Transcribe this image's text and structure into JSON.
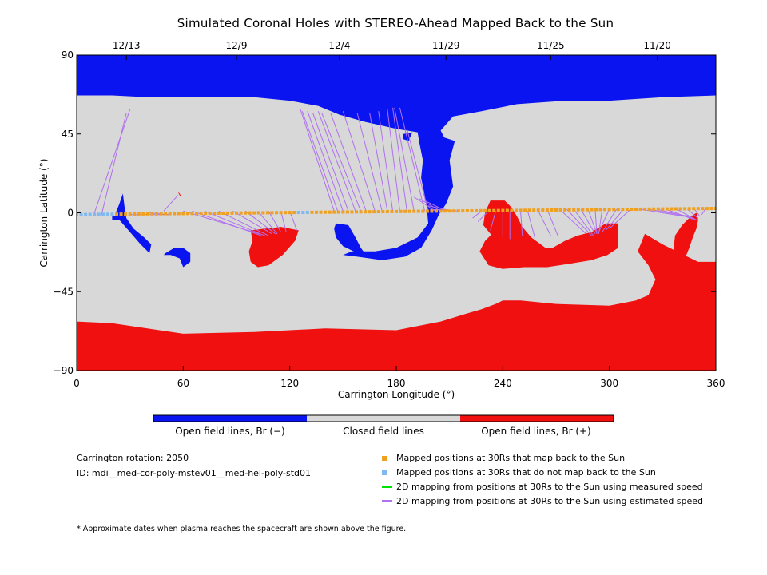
{
  "title": "Simulated Coronal Holes with STEREO-Ahead Mapped Back to the Sun",
  "chart_data": {
    "type": "heatmap",
    "title": "Simulated Coronal Holes with STEREO-Ahead Mapped Back to the Sun",
    "xlabel": "Carrington Longitude (°)",
    "ylabel": "Carrington Latitude (°)",
    "xlim": [
      0,
      360
    ],
    "ylim": [
      -90,
      90
    ],
    "x_ticks": [
      0,
      60,
      120,
      180,
      240,
      300,
      360
    ],
    "y_ticks": [
      -90,
      -45,
      0,
      45,
      90
    ],
    "top_axis_dates": [
      {
        "label": "12/13",
        "lon": 28
      },
      {
        "label": "12/9",
        "lon": 90
      },
      {
        "label": "12/4",
        "lon": 148
      },
      {
        "label": "11/29",
        "lon": 208
      },
      {
        "label": "11/25",
        "lon": 267
      },
      {
        "label": "11/20",
        "lon": 327
      }
    ],
    "categories": [
      "Open field lines, Br (−)",
      "Closed field lines",
      "Open field lines, Br (+)"
    ],
    "colors": {
      "neg": "#0a14f0",
      "closed": "#d8d8d8",
      "pos": "#f01010",
      "mapped": "#f0a020",
      "unmapped": "#80b8f0",
      "measured": "#00e000",
      "estimated": "#b070f0"
    },
    "regions": [
      {
        "polarity": "neg",
        "poly": [
          [
            0,
            90
          ],
          [
            360,
            90
          ],
          [
            360,
            67
          ],
          [
            330,
            66
          ],
          [
            300,
            64
          ],
          [
            275,
            64
          ],
          [
            248,
            62
          ],
          [
            228,
            58
          ],
          [
            212,
            55
          ],
          [
            205,
            47
          ],
          [
            207,
            43
          ],
          [
            213,
            41
          ],
          [
            210,
            30
          ],
          [
            212,
            15
          ],
          [
            208,
            5
          ],
          [
            204,
            -1
          ],
          [
            200,
            -10
          ],
          [
            194,
            -20
          ],
          [
            185,
            -25
          ],
          [
            172,
            -27
          ],
          [
            158,
            -25
          ],
          [
            150,
            -24
          ],
          [
            155,
            -22
          ],
          [
            168,
            -22
          ],
          [
            180,
            -20
          ],
          [
            192,
            -14
          ],
          [
            198,
            -6
          ],
          [
            197,
            5
          ],
          [
            194,
            20
          ],
          [
            195,
            30
          ],
          [
            193,
            40
          ],
          [
            192,
            46
          ],
          [
            180,
            48
          ],
          [
            162,
            52
          ],
          [
            148,
            56
          ],
          [
            136,
            61
          ],
          [
            120,
            64
          ],
          [
            100,
            66
          ],
          [
            80,
            66
          ],
          [
            60,
            66
          ],
          [
            40,
            66
          ],
          [
            20,
            67
          ],
          [
            0,
            67
          ]
        ]
      },
      {
        "polarity": "neg",
        "poly": [
          [
            146,
            -6
          ],
          [
            153,
            -7
          ],
          [
            157,
            -14
          ],
          [
            160,
            -20
          ],
          [
            163,
            -24
          ],
          [
            156,
            -22
          ],
          [
            150,
            -19
          ],
          [
            146,
            -14
          ],
          [
            145,
            -9
          ]
        ]
      },
      {
        "polarity": "neg",
        "poly": [
          [
            184,
            45
          ],
          [
            189,
            46
          ],
          [
            187,
            41
          ],
          [
            184,
            42
          ]
        ]
      },
      {
        "polarity": "neg",
        "poly": [
          [
            24,
            5
          ],
          [
            26,
            11
          ],
          [
            27,
            3
          ],
          [
            28,
            -3
          ],
          [
            32,
            -9
          ],
          [
            38,
            -14
          ],
          [
            42,
            -18
          ],
          [
            41,
            -23
          ],
          [
            36,
            -18
          ],
          [
            30,
            -11
          ],
          [
            24,
            -4
          ],
          [
            22,
            0
          ]
        ]
      },
      {
        "polarity": "neg",
        "poly": [
          [
            50,
            -23
          ],
          [
            55,
            -20
          ],
          [
            60,
            -20
          ],
          [
            64,
            -23
          ],
          [
            64,
            -28
          ],
          [
            60,
            -31
          ],
          [
            58,
            -26
          ],
          [
            53,
            -24
          ],
          [
            49,
            -24
          ]
        ]
      },
      {
        "polarity": "neg",
        "poly": [
          [
            20,
            -2
          ],
          [
            26,
            -2
          ],
          [
            26,
            -4
          ],
          [
            20,
            -4
          ]
        ]
      },
      {
        "polarity": "pos",
        "poly": [
          [
            0,
            -62
          ],
          [
            20,
            -63
          ],
          [
            60,
            -69
          ],
          [
            100,
            -68
          ],
          [
            140,
            -66
          ],
          [
            180,
            -67
          ],
          [
            205,
            -62
          ],
          [
            218,
            -58
          ],
          [
            228,
            -55
          ],
          [
            236,
            -52
          ],
          [
            240,
            -50
          ],
          [
            250,
            -50
          ],
          [
            270,
            -52
          ],
          [
            300,
            -53
          ],
          [
            315,
            -50
          ],
          [
            322,
            -47
          ],
          [
            326,
            -38
          ],
          [
            322,
            -30
          ],
          [
            316,
            -22
          ],
          [
            320,
            -12
          ],
          [
            330,
            -18
          ],
          [
            342,
            -24
          ],
          [
            350,
            -28
          ],
          [
            360,
            -28
          ],
          [
            360,
            -90
          ],
          [
            0,
            -90
          ]
        ]
      },
      {
        "polarity": "pos",
        "poly": [
          [
            233,
            7
          ],
          [
            241,
            7
          ],
          [
            245,
            3
          ],
          [
            248,
            -2
          ],
          [
            251,
            -8
          ],
          [
            256,
            -14
          ],
          [
            260,
            -17
          ],
          [
            264,
            -20
          ],
          [
            268,
            -20
          ],
          [
            275,
            -16
          ],
          [
            282,
            -13
          ],
          [
            290,
            -11
          ],
          [
            298,
            -6
          ],
          [
            305,
            -6
          ],
          [
            305,
            -20
          ],
          [
            299,
            -24
          ],
          [
            290,
            -27
          ],
          [
            278,
            -29
          ],
          [
            265,
            -31
          ],
          [
            252,
            -31
          ],
          [
            240,
            -32
          ],
          [
            232,
            -30
          ],
          [
            227,
            -22
          ],
          [
            230,
            -16
          ],
          [
            234,
            -12
          ],
          [
            244,
            -12
          ],
          [
            251,
            -8
          ],
          [
            245,
            -14
          ],
          [
            238,
            -15
          ],
          [
            233,
            -12
          ],
          [
            229,
            -7
          ],
          [
            230,
            0
          ]
        ]
      },
      {
        "polarity": "pos",
        "poly": [
          [
            346,
            -2
          ],
          [
            349,
            0
          ],
          [
            350,
            -4
          ],
          [
            349,
            -9
          ],
          [
            347,
            -14
          ],
          [
            345,
            -20
          ],
          [
            343,
            -25
          ],
          [
            342,
            -29
          ],
          [
            340,
            -31
          ],
          [
            337,
            -30
          ],
          [
            336,
            -22
          ],
          [
            337,
            -13
          ],
          [
            341,
            -7
          ],
          [
            344,
            -4
          ]
        ]
      },
      {
        "polarity": "pos",
        "poly": [
          [
            98,
            -10
          ],
          [
            115,
            -8
          ],
          [
            125,
            -10
          ],
          [
            123,
            -16
          ],
          [
            116,
            -24
          ],
          [
            108,
            -30
          ],
          [
            102,
            -31
          ],
          [
            98,
            -28
          ],
          [
            97,
            -22
          ],
          [
            99,
            -16
          ]
        ]
      },
      {
        "polarity": "pos",
        "poly": [
          [
            57,
            12
          ],
          [
            58,
            10
          ],
          [
            59,
            9
          ],
          [
            58,
            11
          ]
        ]
      }
    ],
    "mapped_at_30Rs": {
      "lon_start": 0,
      "lon_end": 360,
      "step": 2.5,
      "lat_start": -1,
      "lat_end": 2.5,
      "unmapped_lon_ranges": [
        [
          0,
          20
        ],
        [
          124,
          131
        ]
      ]
    },
    "estimated_speed_mappings": [
      [
        10,
        0,
        30,
        59
      ],
      [
        14,
        -1,
        28,
        57
      ],
      [
        30,
        -1,
        52,
        -1
      ],
      [
        40,
        0,
        52,
        -1
      ],
      [
        49,
        1,
        57,
        10
      ],
      [
        60,
        1,
        103,
        -12
      ],
      [
        65,
        1,
        104,
        -13
      ],
      [
        72,
        1,
        106,
        -13
      ],
      [
        80,
        1,
        108,
        -13
      ],
      [
        88,
        1,
        110,
        -12
      ],
      [
        95,
        1,
        112,
        -12
      ],
      [
        102,
        1,
        113,
        -12
      ],
      [
        108,
        1,
        115,
        -11
      ],
      [
        115,
        1,
        118,
        -11
      ],
      [
        120,
        1,
        124,
        -10
      ],
      [
        145,
        1,
        126,
        59
      ],
      [
        147,
        1,
        127,
        58
      ],
      [
        150,
        1,
        130,
        58
      ],
      [
        153,
        1,
        133,
        57
      ],
      [
        157,
        1,
        136,
        58
      ],
      [
        160,
        1,
        138,
        57
      ],
      [
        163,
        1,
        143,
        57
      ],
      [
        168,
        1,
        150,
        58
      ],
      [
        172,
        1,
        158,
        57
      ],
      [
        175,
        1,
        165,
        57
      ],
      [
        178,
        1,
        170,
        58
      ],
      [
        182,
        1,
        175,
        59
      ],
      [
        186,
        1,
        178,
        60
      ],
      [
        190,
        1,
        179,
        60
      ],
      [
        196,
        1,
        182,
        60
      ],
      [
        198,
        1,
        186,
        48
      ],
      [
        202,
        1,
        190,
        9
      ],
      [
        205,
        1,
        193,
        8
      ],
      [
        208,
        1,
        196,
        7
      ],
      [
        212,
        1,
        198,
        4
      ],
      [
        215,
        1,
        199,
        2
      ],
      [
        228,
        1,
        223,
        -3
      ],
      [
        232,
        1,
        226,
        -5
      ],
      [
        236,
        1,
        233,
        -10
      ],
      [
        240,
        1,
        240,
        -13
      ],
      [
        244,
        1,
        244,
        -15
      ],
      [
        250,
        1,
        251,
        -13
      ],
      [
        254,
        1,
        258,
        -14
      ],
      [
        260,
        1,
        267,
        -13
      ],
      [
        265,
        2,
        271,
        -13
      ],
      [
        272,
        2,
        287,
        -12
      ],
      [
        276,
        2,
        290,
        -13
      ],
      [
        280,
        2,
        291,
        -13
      ],
      [
        284,
        2,
        292,
        -12
      ],
      [
        288,
        2,
        293,
        -12
      ],
      [
        292,
        2,
        293,
        -12
      ],
      [
        296,
        2,
        294,
        -12
      ],
      [
        300,
        2,
        294,
        -11
      ],
      [
        304,
        2,
        296,
        -11
      ],
      [
        308,
        2,
        298,
        -10
      ],
      [
        312,
        2,
        300,
        -9
      ],
      [
        318,
        2,
        342,
        -2
      ],
      [
        322,
        2,
        345,
        -2
      ],
      [
        327,
        2,
        347,
        -3
      ],
      [
        332,
        2,
        348,
        -4
      ],
      [
        338,
        2,
        349,
        -4
      ],
      [
        344,
        2,
        350,
        -3
      ],
      [
        348,
        2,
        351,
        -2
      ],
      [
        354,
        2,
        352,
        -1
      ]
    ]
  },
  "colorbar_labels": {
    "neg": "Open field lines, Br (−)",
    "closed": "Closed field lines",
    "pos": "Open field lines, Br (+)"
  },
  "info": {
    "rotation": "Carrington rotation: 2050",
    "id": "ID: mdi__med-cor-poly-mstev01__med-hel-poly-std01"
  },
  "legend": [
    {
      "key": "mapped",
      "label": "Mapped positions at 30Rs that map back to the Sun",
      "symbol": "square",
      "color": "#f0a020"
    },
    {
      "key": "unmapped",
      "label": "Mapped positions at 30Rs that do not map back to the Sun",
      "symbol": "square",
      "color": "#80b8f0"
    },
    {
      "key": "measured",
      "label": "2D mapping from positions at 30Rs to the Sun using measured speed",
      "symbol": "line",
      "color": "#00e000"
    },
    {
      "key": "estimated",
      "label": "2D mapping from positions at 30Rs to the Sun using estimated speed",
      "symbol": "line",
      "color": "#b070f0"
    }
  ],
  "footnote": "* Approximate dates when plasma reaches the spacecraft are shown above the figure."
}
